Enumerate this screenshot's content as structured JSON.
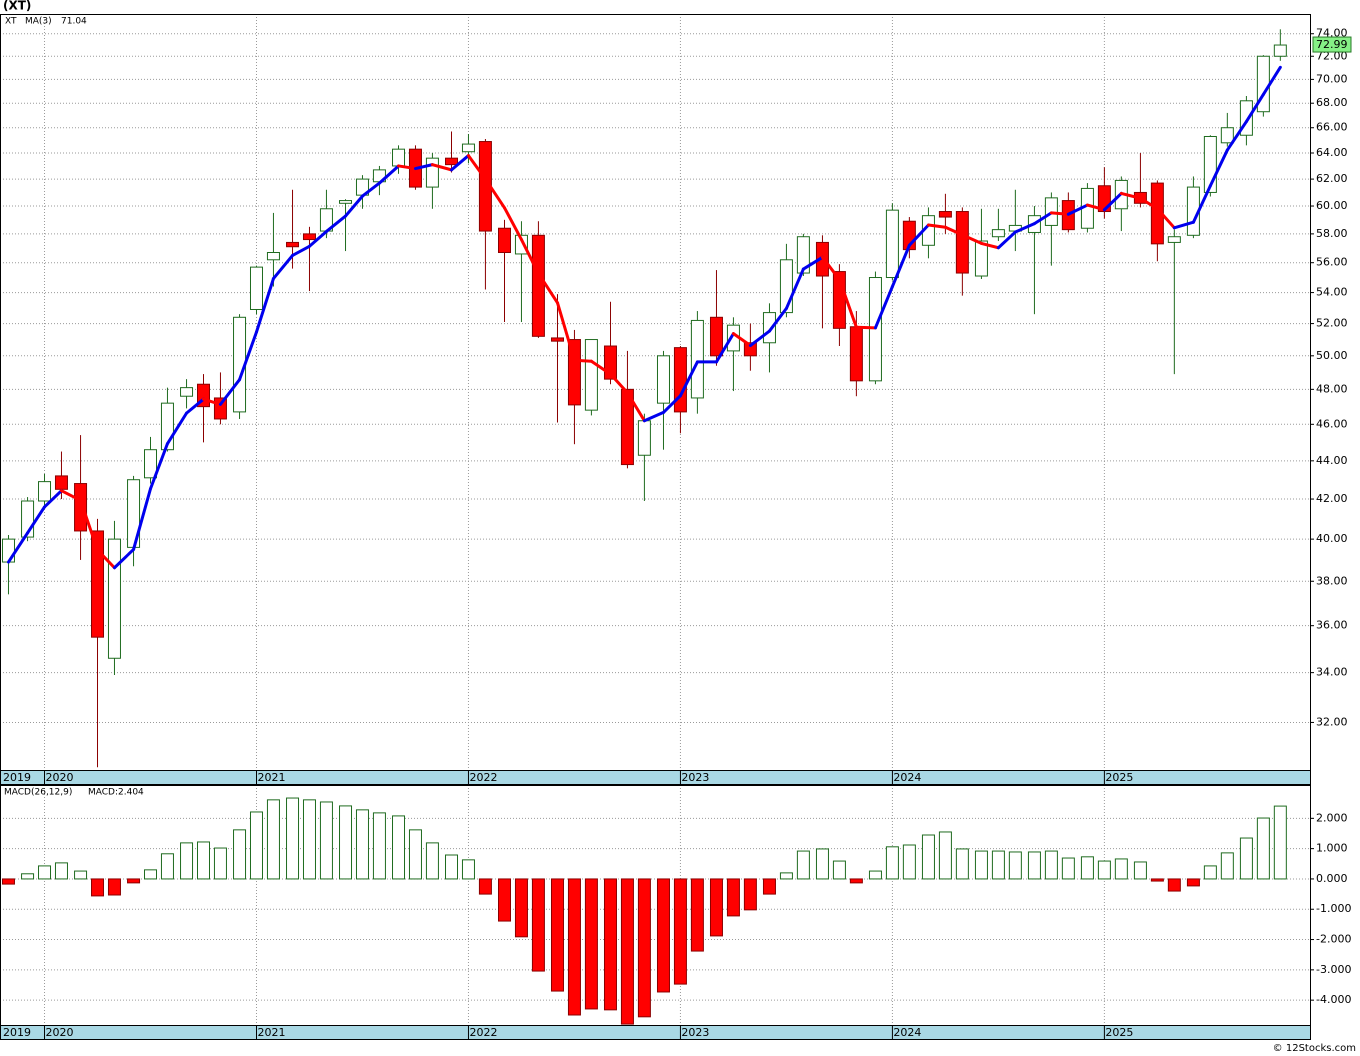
{
  "chart_data": [
    {
      "type": "candlestick",
      "title": "(XT)",
      "symbol": "XT",
      "start_label": "2019",
      "watermark": "© 12Stocks.com",
      "log_scale": true,
      "grid": true,
      "up_color": "#1f6b1f",
      "down_color": "#ff0000",
      "x": [
        2019.83,
        2019.92,
        2020.0,
        2020.08,
        2020.17,
        2020.25,
        2020.33,
        2020.42,
        2020.5,
        2020.58,
        2020.67,
        2020.75,
        2020.83,
        2020.92,
        2021.0,
        2021.08,
        2021.17,
        2021.25,
        2021.33,
        2021.42,
        2021.5,
        2021.58,
        2021.67,
        2021.75,
        2021.83,
        2021.92,
        2022.0,
        2022.08,
        2022.17,
        2022.25,
        2022.33,
        2022.42,
        2022.5,
        2022.58,
        2022.67,
        2022.75,
        2022.83,
        2022.92,
        2023.0,
        2023.08,
        2023.17,
        2023.25,
        2023.33,
        2023.42,
        2023.5,
        2023.58,
        2023.67,
        2023.75,
        2023.83,
        2023.92,
        2024.0,
        2024.08,
        2024.17,
        2024.25,
        2024.33,
        2024.42,
        2024.5,
        2024.58,
        2024.67,
        2024.75,
        2024.83,
        2024.92,
        2025.0,
        2025.08,
        2025.17,
        2025.25,
        2025.33,
        2025.42,
        2025.5,
        2025.58,
        2025.67,
        2025.75,
        2025.83
      ],
      "open": [
        38.9,
        40.1,
        41.9,
        43.2,
        42.8,
        40.4,
        34.6,
        39.6,
        43.1,
        44.6,
        47.6,
        48.3,
        47.5,
        46.7,
        52.9,
        56.2,
        57.4,
        58.0,
        58.2,
        60.2,
        60.8,
        61.8,
        63.0,
        64.3,
        61.4,
        63.6,
        64.1,
        64.9,
        58.4,
        56.6,
        57.9,
        51.1,
        51.0,
        46.8,
        50.6,
        48.0,
        44.3,
        47.2,
        50.5,
        47.5,
        52.4,
        50.3,
        50.8,
        50.8,
        52.7,
        55.3,
        57.4,
        55.4,
        51.8,
        48.5,
        55.0,
        58.9,
        57.2,
        59.6,
        59.6,
        55.1,
        57.8,
        58.2,
        58.1,
        58.6,
        60.4,
        58.4,
        61.5,
        59.8,
        61.0,
        61.7,
        57.4,
        57.9,
        61.0,
        64.8,
        65.4,
        67.3,
        72.0
      ],
      "high": [
        40.2,
        42.1,
        43.3,
        44.5,
        45.4,
        41.0,
        40.9,
        43.2,
        45.3,
        48.1,
        48.6,
        48.9,
        49.0,
        52.6,
        55.8,
        59.5,
        61.2,
        58.5,
        61.2,
        60.5,
        62.3,
        63.0,
        64.6,
        64.6,
        64.0,
        65.7,
        65.5,
        65.1,
        59.0,
        58.9,
        58.9,
        53.9,
        51.6,
        51.0,
        53.4,
        50.3,
        46.6,
        50.3,
        50.6,
        52.8,
        55.5,
        52.4,
        52.0,
        53.3,
        57.3,
        58.0,
        57.9,
        55.9,
        52.8,
        55.4,
        60.2,
        59.2,
        59.9,
        60.9,
        59.9,
        59.8,
        59.8,
        61.2,
        60.0,
        61.0,
        61.0,
        61.7,
        62.9,
        62.2,
        64.0,
        61.9,
        58.3,
        62.2,
        65.4,
        67.2,
        68.6,
        72.1,
        74.4
      ],
      "low": [
        37.4,
        39.9,
        41.6,
        42.0,
        39.0,
        30.3,
        33.9,
        38.7,
        42.8,
        44.5,
        46.9,
        45.0,
        46.0,
        46.3,
        52.6,
        54.4,
        55.6,
        54.1,
        57.7,
        56.8,
        59.8,
        60.8,
        62.4,
        61.2,
        59.8,
        62.5,
        63.2,
        54.2,
        52.1,
        52.1,
        51.1,
        46.1,
        44.9,
        46.5,
        48.3,
        43.6,
        41.9,
        44.6,
        45.5,
        46.6,
        49.4,
        47.9,
        49.1,
        49.0,
        52.4,
        55.1,
        51.7,
        50.6,
        47.6,
        48.3,
        54.8,
        56.3,
        56.3,
        58.0,
        53.8,
        54.9,
        57.5,
        56.8,
        52.6,
        55.8,
        58.1,
        58.1,
        59.1,
        58.2,
        59.9,
        56.1,
        48.9,
        57.7,
        60.7,
        64.5,
        64.6,
        66.9,
        71.6
      ],
      "close": [
        40.0,
        41.9,
        42.9,
        42.5,
        40.4,
        35.5,
        40.0,
        43.0,
        44.6,
        47.2,
        48.1,
        47.0,
        46.3,
        52.4,
        55.7,
        56.7,
        57.1,
        57.6,
        59.8,
        60.4,
        62.0,
        62.7,
        64.3,
        61.4,
        63.6,
        63.1,
        64.7,
        58.2,
        56.7,
        57.9,
        51.2,
        50.9,
        47.1,
        51.0,
        48.6,
        43.8,
        46.2,
        50.0,
        46.7,
        52.2,
        50.0,
        51.9,
        50.0,
        52.7,
        56.2,
        57.8,
        55.1,
        51.7,
        48.5,
        55.0,
        59.7,
        56.9,
        59.3,
        59.2,
        55.3,
        57.5,
        58.3,
        58.6,
        59.3,
        60.6,
        58.3,
        61.3,
        59.6,
        61.9,
        60.2,
        57.3,
        57.8,
        61.4,
        65.3,
        66.0,
        68.2,
        72.0,
        72.99
      ],
      "ma": {
        "name": "MA(3)",
        "rise_color": "#0000ee",
        "fall_color": "#ff0000",
        "values": [
          38.9,
          40.3,
          41.6,
          42.43,
          41.93,
          39.47,
          38.63,
          39.5,
          42.53,
          44.93,
          46.63,
          47.43,
          47.13,
          48.57,
          51.47,
          54.93,
          56.5,
          57.13,
          58.17,
          59.27,
          60.73,
          61.7,
          63.0,
          62.8,
          63.1,
          62.7,
          63.8,
          62.0,
          59.87,
          57.6,
          55.27,
          53.33,
          49.73,
          49.67,
          48.9,
          47.8,
          46.2,
          46.67,
          47.63,
          49.63,
          49.63,
          51.37,
          50.63,
          51.53,
          52.97,
          55.57,
          56.37,
          54.87,
          51.77,
          51.73,
          54.4,
          57.2,
          58.63,
          58.47,
          57.93,
          57.33,
          57.03,
          58.13,
          58.73,
          59.5,
          59.4,
          60.07,
          59.73,
          60.93,
          60.57,
          59.8,
          58.43,
          58.83,
          61.5,
          64.23,
          66.5,
          68.73,
          71.04
        ]
      },
      "xlim": [
        2019.79,
        2025.97
      ],
      "xticks": [
        2020,
        2021,
        2022,
        2023,
        2024,
        2025
      ],
      "ylim": [
        30.2,
        75.8
      ],
      "yticks": [
        {
          "value": 32,
          "label": "32.00"
        },
        {
          "value": 34,
          "label": "34.00"
        },
        {
          "value": 36,
          "label": "36.00"
        },
        {
          "value": 38,
          "label": "38.00"
        },
        {
          "value": 40,
          "label": "40.00"
        },
        {
          "value": 42,
          "label": "42.00"
        },
        {
          "value": 44,
          "label": "44.00"
        },
        {
          "value": 46,
          "label": "46.00"
        },
        {
          "value": 48,
          "label": "48.00"
        },
        {
          "value": 50,
          "label": "50.00"
        },
        {
          "value": 52,
          "label": "52.00"
        },
        {
          "value": 54,
          "label": "54.00"
        },
        {
          "value": 56,
          "label": "56.00"
        },
        {
          "value": 58,
          "label": "58.00"
        },
        {
          "value": 60,
          "label": "60.00"
        },
        {
          "value": 62,
          "label": "62.00"
        },
        {
          "value": 64,
          "label": "64.00"
        },
        {
          "value": 66,
          "label": "66.00"
        },
        {
          "value": 68,
          "label": "68.00"
        },
        {
          "value": 70,
          "label": "70.00"
        },
        {
          "value": 72,
          "label": "72.00"
        },
        {
          "value": 74,
          "label": "74.00"
        }
      ]
    },
    {
      "type": "histogram-macd",
      "title": "MACD(26,12,9)",
      "last_value_label": "MACD:2.404",
      "start_label": "2019",
      "grid": true,
      "up_color": "#1f6b1f",
      "down_color": "#ff0000",
      "values": [
        -0.17,
        0.17,
        0.43,
        0.53,
        0.26,
        -0.56,
        -0.53,
        -0.13,
        0.3,
        0.83,
        1.19,
        1.22,
        1.02,
        1.62,
        2.21,
        2.61,
        2.67,
        2.61,
        2.54,
        2.41,
        2.28,
        2.18,
        2.08,
        1.62,
        1.19,
        0.79,
        0.63,
        -0.5,
        -1.39,
        -1.91,
        -3.04,
        -3.7,
        -4.49,
        -4.29,
        -4.32,
        -4.79,
        -4.55,
        -3.73,
        -3.47,
        -2.38,
        -1.88,
        -1.22,
        -1.02,
        -0.5,
        0.2,
        0.92,
        0.99,
        0.59,
        -0.13,
        0.26,
        1.06,
        1.12,
        1.45,
        1.55,
        0.99,
        0.92,
        0.92,
        0.89,
        0.89,
        0.92,
        0.69,
        0.73,
        0.59,
        0.66,
        0.56,
        -0.07,
        -0.4,
        -0.23,
        0.43,
        0.86,
        1.35,
        2.01,
        2.404
      ],
      "xlim": [
        2019.79,
        2025.97
      ],
      "xticks": [
        2020,
        2021,
        2022,
        2023,
        2024,
        2025
      ],
      "ylim": [
        -4.82,
        3.1
      ],
      "yticks": [
        {
          "value": -4,
          "label": "-4.000"
        },
        {
          "value": -3,
          "label": "-3.000"
        },
        {
          "value": -2,
          "label": "-2.000"
        },
        {
          "value": -1,
          "label": "-1.000"
        },
        {
          "value": 0,
          "label": "0.000"
        },
        {
          "value": 1,
          "label": "1.000"
        },
        {
          "value": 2,
          "label": "2.000"
        }
      ]
    }
  ]
}
